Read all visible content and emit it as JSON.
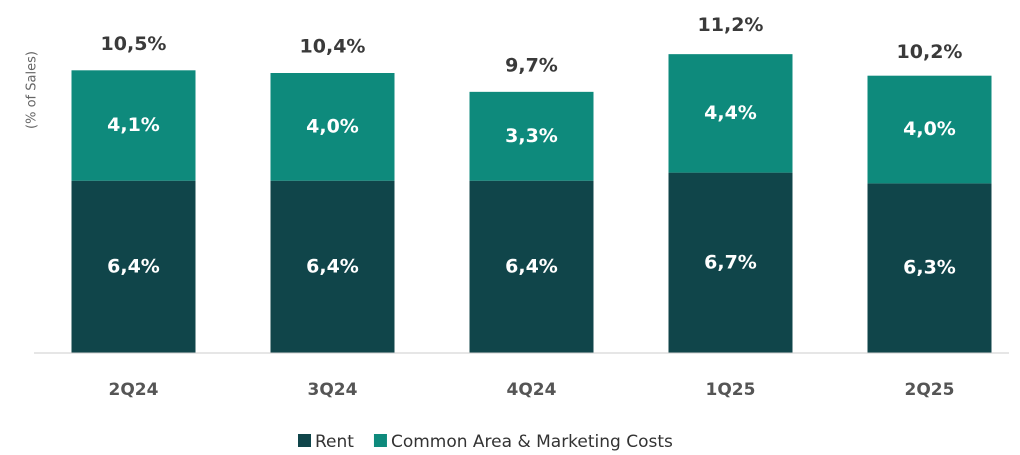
{
  "chart_data": {
    "type": "bar",
    "stacked": true,
    "y_label": "(% of Sales)",
    "categories": [
      "2Q24",
      "3Q24",
      "4Q24",
      "1Q25",
      "2Q25"
    ],
    "series": [
      {
        "name": "Rent",
        "color": "#10454a",
        "values": [
          6.4,
          6.4,
          6.4,
          6.7,
          6.3
        ],
        "value_labels": [
          "6,4%",
          "6,4%",
          "6,4%",
          "6,7%",
          "6,3%"
        ]
      },
      {
        "name": "Common Area & Marketing Costs",
        "color": "#0e8a7c",
        "values": [
          4.1,
          4.0,
          3.3,
          4.4,
          4.0
        ],
        "value_labels": [
          "4,1%",
          "4,0%",
          "3,3%",
          "4,4%",
          "4,0%"
        ]
      }
    ],
    "totals": [
      10.5,
      10.4,
      9.7,
      11.2,
      10.2
    ],
    "total_labels": [
      "10,5%",
      "10,4%",
      "9,7%",
      "11,2%",
      "10,2%"
    ],
    "ylim": [
      0,
      13
    ],
    "legend": "bottom"
  }
}
